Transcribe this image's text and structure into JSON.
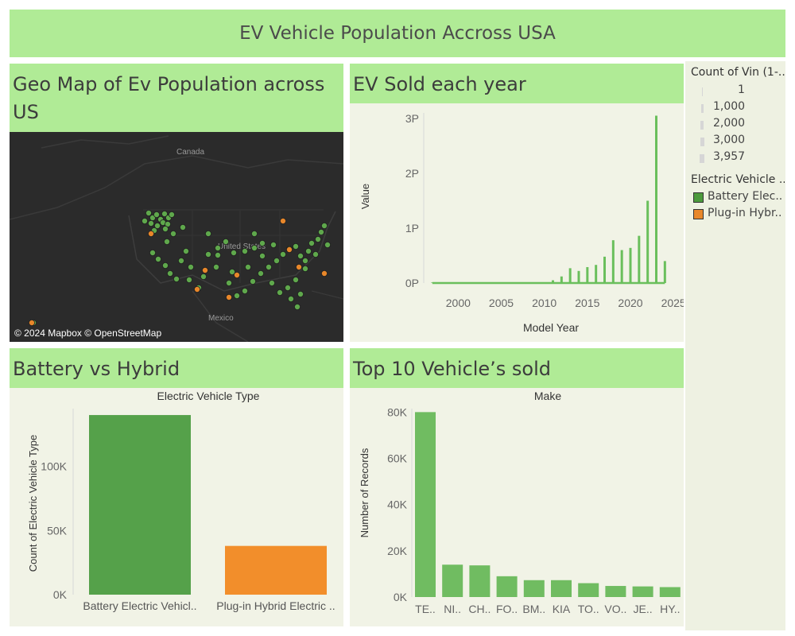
{
  "dashboard": {
    "title": "EV Vehicle Population Accross USA"
  },
  "panels": {
    "geo_map": {
      "title": "Geo Map of Ev Population across US",
      "labels": {
        "canada": "Canada",
        "united_states": "United States",
        "mexico": "Mexico"
      },
      "credit": "© 2024 Mapbox © OpenStreetMap",
      "colors": {
        "background": "#2b2b2b",
        "bev": "#5fa84c",
        "phev": "#e8872a"
      }
    },
    "ev_sold": {
      "title": "EV Sold each year"
    },
    "battery_vs_hybrid": {
      "title": "Battery vs Hybrid"
    },
    "top10": {
      "title": "Top 10 Vehicle’s sold"
    }
  },
  "legend": {
    "size": {
      "title": "Count of Vin (1-...",
      "items": [
        "1",
        "1,000",
        "2,000",
        "3,000",
        "3,957"
      ]
    },
    "color": {
      "title": "Electric Vehicle ..",
      "items": [
        {
          "label": "Battery Elec..",
          "color": "#4c9a3d"
        },
        {
          "label": "Plug-in Hybr..",
          "color": "#e8872a"
        }
      ]
    }
  },
  "chart_data": [
    {
      "id": "ev_sold_each_year",
      "type": "bar",
      "xlabel": "Model Year",
      "ylabel": "Value",
      "xlim": [
        1996,
        2026
      ],
      "x_ticks": [
        2000,
        2005,
        2010,
        2015,
        2020,
        2025
      ],
      "ylim": [
        0,
        3.1
      ],
      "y_ticks": [
        0,
        1,
        2,
        3
      ],
      "y_tick_labels": [
        "0P",
        "1P",
        "2P",
        "3P"
      ],
      "x": [
        1997,
        1998,
        1999,
        2000,
        2001,
        2002,
        2003,
        2004,
        2005,
        2006,
        2007,
        2008,
        2009,
        2010,
        2011,
        2012,
        2013,
        2014,
        2015,
        2016,
        2017,
        2018,
        2019,
        2020,
        2021,
        2022,
        2023,
        2024
      ],
      "values": [
        0.01,
        0.01,
        0.01,
        0.01,
        0.0,
        0.0,
        0.01,
        0.0,
        0.0,
        0.0,
        0.01,
        0.01,
        0.01,
        0.01,
        0.05,
        0.12,
        0.27,
        0.22,
        0.29,
        0.33,
        0.48,
        0.78,
        0.6,
        0.64,
        0.86,
        1.5,
        3.05,
        0.4
      ],
      "grid": false,
      "color": "#6abf5c"
    },
    {
      "id": "battery_vs_hybrid",
      "type": "bar",
      "title": "Electric Vehicle Type",
      "ylabel": "Count of Electric Vehicle Type",
      "categories": [
        "Battery Electric Vehicl..",
        "Plug-in Hybrid Electric .."
      ],
      "values": [
        140000,
        38000
      ],
      "colors": [
        "#55a14a",
        "#f28e2b"
      ],
      "ylim": [
        0,
        145000
      ],
      "y_ticks": [
        0,
        50000,
        100000
      ],
      "y_tick_labels": [
        "0K",
        "50K",
        "100K"
      ],
      "grid": false
    },
    {
      "id": "top10_vehicles",
      "type": "bar",
      "title": "Make",
      "ylabel": "Number of Records",
      "categories": [
        "TE..",
        "NI..",
        "CH..",
        "FO..",
        "BM..",
        "KIA",
        "TO..",
        "VO..",
        "JE..",
        "HY.."
      ],
      "values": [
        80000,
        14000,
        13700,
        9000,
        7300,
        7300,
        6000,
        4800,
        4600,
        4300
      ],
      "ylim": [
        0,
        81500
      ],
      "y_ticks": [
        0,
        20000,
        40000,
        60000,
        80000
      ],
      "y_tick_labels": [
        "0K",
        "20K",
        "40K",
        "60K",
        "80K"
      ],
      "grid": false,
      "color": "#70bc61"
    }
  ]
}
